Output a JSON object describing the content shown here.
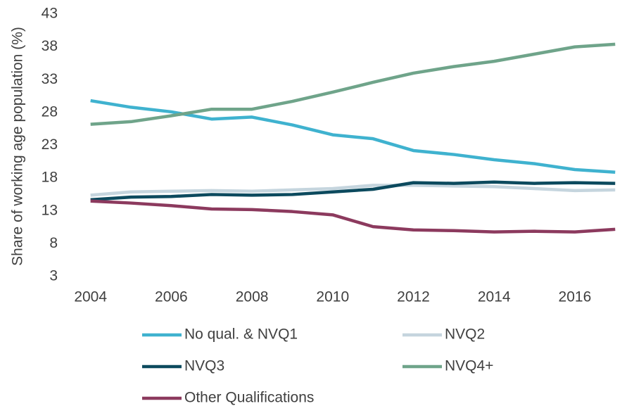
{
  "chart_data": {
    "type": "line",
    "y_label": "Share of working age population (%)",
    "x": [
      2004,
      2005,
      2006,
      2007,
      2008,
      2009,
      2010,
      2011,
      2012,
      2013,
      2014,
      2015,
      2016,
      2017
    ],
    "xlim": [
      2003.5,
      2017.1
    ],
    "xticks": [
      2004,
      2006,
      2008,
      2010,
      2012,
      2014,
      2016
    ],
    "ylim": [
      3,
      43
    ],
    "yticks": [
      3,
      8,
      13,
      18,
      23,
      28,
      33,
      38,
      43
    ],
    "grid": false,
    "legend": "bottom",
    "series": [
      {
        "name": "No qual. & NVQ1",
        "color": "#3fb2cf",
        "values": [
          29.8,
          28.8,
          28.1,
          27.0,
          27.3,
          26.1,
          24.6,
          24.0,
          22.2,
          21.6,
          20.8,
          20.2,
          19.3,
          18.9
        ]
      },
      {
        "name": "NVQ2",
        "color": "#c5d5de",
        "values": [
          15.4,
          15.9,
          16.0,
          16.1,
          16.0,
          16.2,
          16.4,
          16.9,
          16.9,
          16.8,
          16.7,
          16.4,
          16.1,
          16.2
        ]
      },
      {
        "name": "NVQ3",
        "color": "#0c4a5e",
        "values": [
          14.7,
          15.1,
          15.2,
          15.5,
          15.4,
          15.5,
          15.9,
          16.3,
          17.3,
          17.2,
          17.4,
          17.2,
          17.3,
          17.2
        ]
      },
      {
        "name": "NVQ4+",
        "color": "#6fa48a",
        "values": [
          26.2,
          26.6,
          27.5,
          28.5,
          28.5,
          29.7,
          31.1,
          32.6,
          34.0,
          35.0,
          35.8,
          36.9,
          38.0,
          38.4
        ]
      },
      {
        "name": "Other Qualifications",
        "color": "#8c3a5e",
        "values": [
          14.5,
          14.2,
          13.8,
          13.3,
          13.2,
          12.9,
          12.4,
          10.6,
          10.1,
          10.0,
          9.8,
          9.9,
          9.8,
          10.2
        ]
      }
    ]
  }
}
